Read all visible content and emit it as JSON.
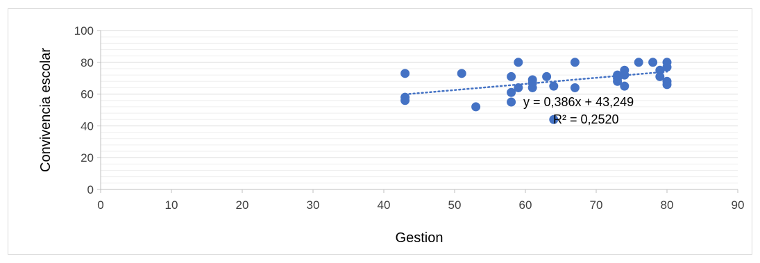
{
  "chart_data": {
    "type": "scatter",
    "xlabel": "Gestion",
    "ylabel": "Convivencia escolar",
    "xlim": [
      0,
      90
    ],
    "ylim": [
      0,
      100
    ],
    "x_ticks": [
      0,
      10,
      20,
      30,
      40,
      50,
      60,
      70,
      80,
      90
    ],
    "y_ticks": [
      0,
      20,
      40,
      60,
      80,
      100
    ],
    "grid": "horizontal major and minor",
    "legend": "none",
    "marker_color": "#4472c4",
    "points": [
      {
        "x": 43,
        "y": 73
      },
      {
        "x": 43,
        "y": 58
      },
      {
        "x": 43,
        "y": 56
      },
      {
        "x": 51,
        "y": 73
      },
      {
        "x": 53,
        "y": 52
      },
      {
        "x": 58,
        "y": 71
      },
      {
        "x": 58,
        "y": 61
      },
      {
        "x": 58,
        "y": 55
      },
      {
        "x": 59,
        "y": 80
      },
      {
        "x": 59,
        "y": 64
      },
      {
        "x": 61,
        "y": 69
      },
      {
        "x": 61,
        "y": 67
      },
      {
        "x": 61,
        "y": 64
      },
      {
        "x": 63,
        "y": 71
      },
      {
        "x": 64,
        "y": 65
      },
      {
        "x": 64,
        "y": 44
      },
      {
        "x": 67,
        "y": 80
      },
      {
        "x": 67,
        "y": 64
      },
      {
        "x": 73,
        "y": 72
      },
      {
        "x": 73,
        "y": 70
      },
      {
        "x": 73,
        "y": 68
      },
      {
        "x": 74,
        "y": 75
      },
      {
        "x": 74,
        "y": 72
      },
      {
        "x": 74,
        "y": 65
      },
      {
        "x": 76,
        "y": 80
      },
      {
        "x": 78,
        "y": 80
      },
      {
        "x": 79,
        "y": 75
      },
      {
        "x": 79,
        "y": 71
      },
      {
        "x": 80,
        "y": 80
      },
      {
        "x": 80,
        "y": 77
      },
      {
        "x": 80,
        "y": 68
      },
      {
        "x": 80,
        "y": 66
      }
    ],
    "trendline": {
      "type": "linear",
      "slope": 0.386,
      "intercept": 43.249,
      "x_range": [
        43,
        80
      ],
      "equation_label": "y = 0,386x + 43,249",
      "r2_label": "R² = 0,2520"
    }
  }
}
